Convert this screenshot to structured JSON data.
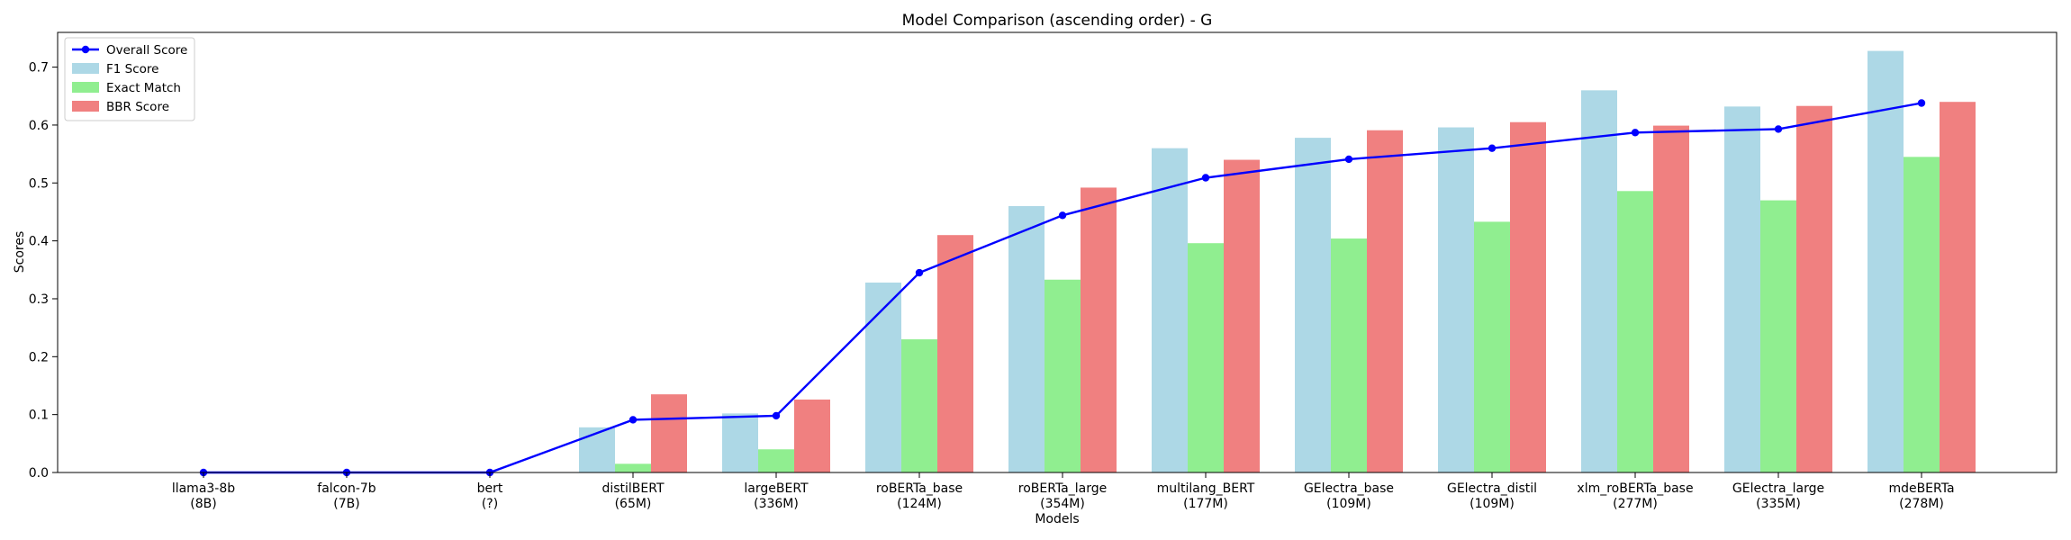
{
  "chart_data": {
    "type": "bar",
    "title": "Model Comparison (ascending order) - G",
    "xlabel": "Models",
    "ylabel": "Scores",
    "ylim": [
      0,
      0.76
    ],
    "yticks": [
      "0.0",
      "0.1",
      "0.2",
      "0.3",
      "0.4",
      "0.5",
      "0.6",
      "0.7"
    ],
    "grid": false,
    "legend_position": "top-left",
    "categories": [
      "llama3-8b\n(8B)",
      "falcon-7b\n(7B)",
      "bert\n(?)",
      "distilBERT\n(65M)",
      "largeBERT\n(336M)",
      "roBERTa_base\n(124M)",
      "roBERTa_large\n(354M)",
      "multilang_BERT\n(177M)",
      "GElectra_base\n(109M)",
      "GElectra_distil\n(109M)",
      "xlm_roBERTa_base\n(277M)",
      "GElectra_large\n(335M)",
      "mdeBERTa\n(278M)"
    ],
    "series": [
      {
        "name": "F1 Score",
        "kind": "bar",
        "color": "#add8e6",
        "values": [
          0,
          0,
          0,
          0.078,
          0.102,
          0.328,
          0.46,
          0.56,
          0.578,
          0.596,
          0.66,
          0.632,
          0.728
        ]
      },
      {
        "name": "Exact Match",
        "kind": "bar",
        "color": "#90ee90",
        "values": [
          0,
          0,
          0,
          0.015,
          0.04,
          0.23,
          0.333,
          0.396,
          0.404,
          0.433,
          0.486,
          0.47,
          0.545
        ]
      },
      {
        "name": "BBR Score",
        "kind": "bar",
        "color": "#f08080",
        "values": [
          0,
          0,
          0,
          0.135,
          0.126,
          0.41,
          0.492,
          0.54,
          0.591,
          0.605,
          0.599,
          0.633,
          0.64
        ]
      },
      {
        "name": "Overall Score",
        "kind": "line",
        "color": "#0000ff",
        "values": [
          0,
          0,
          0,
          0.091,
          0.098,
          0.345,
          0.444,
          0.509,
          0.541,
          0.56,
          0.587,
          0.593,
          0.638
        ]
      }
    ]
  }
}
